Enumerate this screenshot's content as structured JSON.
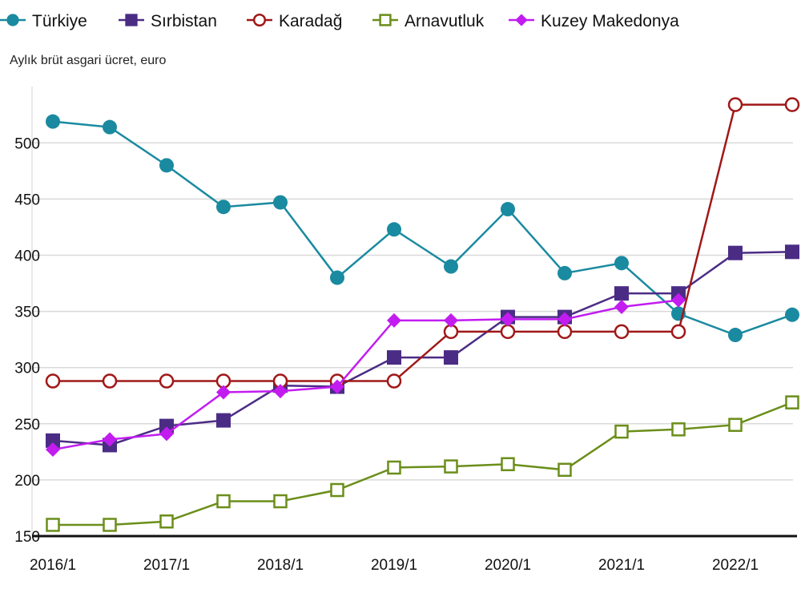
{
  "chart_data": {
    "type": "line",
    "title": "",
    "ylabel": "Aylık brüt asgari ücret, euro",
    "xlabel": "",
    "ylim": [
      150,
      550
    ],
    "yticks": [
      150,
      200,
      250,
      300,
      350,
      400,
      450,
      500
    ],
    "grid": true,
    "legend_position": "top",
    "x": [
      "2016/1",
      "2016/7",
      "2017/1",
      "2017/7",
      "2018/1",
      "2018/7",
      "2019/1",
      "2019/7",
      "2020/1",
      "2020/7",
      "2021/1",
      "2021/7",
      "2022/1",
      "2022/7"
    ],
    "xtick_labels": [
      "2016/1",
      "2017/1",
      "2018/1",
      "2019/1",
      "2020/1",
      "2021/1",
      "2022/1"
    ],
    "series": [
      {
        "name": "Türkiye",
        "color": "#1a8aa0",
        "marker": "circle-filled",
        "values": [
          519,
          514,
          480,
          443,
          447,
          380,
          423,
          390,
          441,
          384,
          393,
          348,
          329,
          347
        ]
      },
      {
        "name": "Sırbistan",
        "color": "#4b2c85",
        "marker": "square-filled",
        "values": [
          235,
          231,
          248,
          253,
          284,
          283,
          309,
          309,
          345,
          345,
          366,
          366,
          402,
          403
        ]
      },
      {
        "name": "Karadağ",
        "color": "#a01818",
        "marker": "circle-open",
        "values": [
          288,
          288,
          288,
          288,
          288,
          288,
          288,
          332,
          332,
          332,
          332,
          332,
          534,
          534
        ]
      },
      {
        "name": "Arnavutluk",
        "color": "#6b8e1a",
        "marker": "square-open",
        "values": [
          160,
          160,
          163,
          181,
          181,
          191,
          211,
          212,
          214,
          209,
          243,
          245,
          249,
          269
        ]
      },
      {
        "name": "Kuzey Makedonya",
        "color": "#c21cf0",
        "marker": "diamond-filled",
        "values": [
          227,
          236,
          241,
          278,
          279,
          283,
          342,
          342,
          343,
          343,
          354,
          360,
          null,
          null
        ]
      }
    ]
  }
}
